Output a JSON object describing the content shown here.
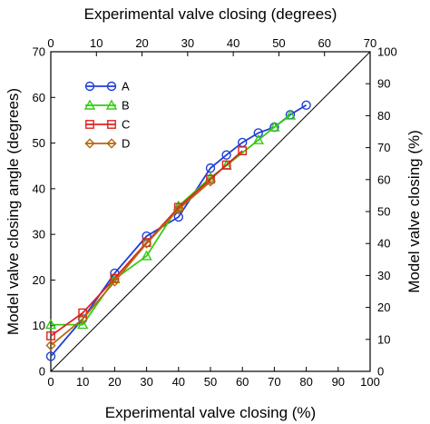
{
  "chart_data": {
    "type": "line",
    "top_axis_title": "Experimental valve closing (degrees)",
    "bottom_axis_title": "Experimental valve closing (%)",
    "left_axis_title": "Model valve closing angle (degrees)",
    "right_axis_title": "Model valve closing (%)",
    "x_range": [
      0,
      100
    ],
    "x_ticks": [
      0,
      10,
      20,
      30,
      40,
      50,
      60,
      70,
      80,
      90,
      100
    ],
    "top_range": [
      0,
      70
    ],
    "top_ticks": [
      0,
      10,
      20,
      30,
      40,
      50,
      60,
      70
    ],
    "left_range": [
      0,
      70
    ],
    "left_ticks": [
      0,
      10,
      20,
      30,
      40,
      50,
      60,
      70
    ],
    "right_range": [
      0,
      100
    ],
    "right_ticks": [
      0,
      10,
      20,
      30,
      40,
      50,
      60,
      70,
      80,
      90,
      100
    ],
    "reference_line": {
      "x": [
        0,
        100
      ],
      "y": [
        0,
        100
      ]
    },
    "legend_position": "top-left",
    "series": [
      {
        "name": "A",
        "color": "#1f3fd6",
        "marker": "circle",
        "x": [
          0,
          10,
          20,
          30,
          40,
          50,
          55,
          60,
          65,
          70,
          75,
          80
        ],
        "y": [
          4.7,
          16.4,
          30.7,
          42.3,
          48.3,
          63.6,
          67.7,
          71.6,
          74.6,
          76.4,
          80.3,
          83.3
        ]
      },
      {
        "name": "B",
        "color": "#33cc10",
        "marker": "triangle",
        "x": [
          0,
          10,
          20,
          30,
          40,
          50,
          55,
          65,
          70,
          75
        ],
        "y": [
          14.6,
          14.6,
          28.9,
          36.1,
          51.7,
          60.6,
          64.4,
          72.4,
          76.4,
          80.1
        ]
      },
      {
        "name": "C",
        "color": "#e02020",
        "marker": "square",
        "x": [
          0,
          10,
          20,
          30,
          40,
          50,
          55,
          60
        ],
        "y": [
          11.1,
          18.3,
          29.1,
          40.3,
          51.3,
          60.1,
          64.6,
          69.0
        ]
      },
      {
        "name": "D",
        "color": "#b06a10",
        "marker": "diamond",
        "x": [
          0,
          10,
          20,
          30,
          40,
          50
        ],
        "y": [
          8.1,
          16.4,
          28.1,
          40.0,
          50.7,
          59.4
        ]
      }
    ]
  }
}
